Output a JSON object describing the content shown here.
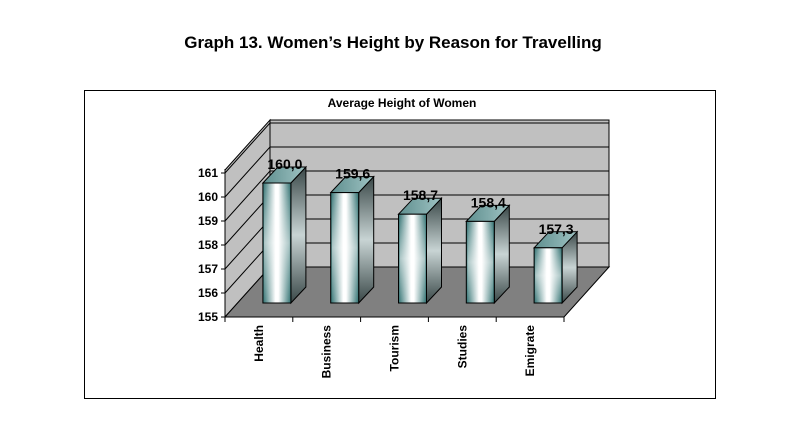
{
  "page": {
    "title": "Graph 13. Women’s Height by Reason for Travelling"
  },
  "colors": {
    "wall": "#c0c0c0",
    "floor": "#808080",
    "bar_edge": "#2f6f6f",
    "bar_light": "#ffffff",
    "bar_dark": "#2a5e5e"
  },
  "chart_data": {
    "type": "bar",
    "title": "Average Height of Women",
    "categories": [
      "Health",
      "Business",
      "Tourism",
      "Studies",
      "Emigrate"
    ],
    "values": [
      160.0,
      159.6,
      158.7,
      158.4,
      157.3
    ],
    "data_labels": [
      "160,0",
      "159,6",
      "158,7",
      "158,4",
      "157,3"
    ],
    "yticks": [
      "155",
      "156",
      "157",
      "158",
      "159",
      "160",
      "161"
    ],
    "ylim": [
      155,
      161
    ],
    "grid": true,
    "legend": "none"
  }
}
